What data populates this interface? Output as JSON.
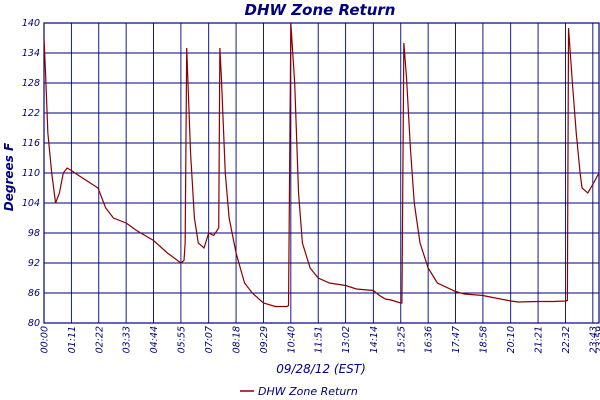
{
  "chart_data": {
    "type": "line",
    "title": "DHW Zone Return",
    "xlabel": "09/28/12 (EST)",
    "ylabel": "Degrees F",
    "ylim": [
      80,
      140
    ],
    "yticks": [
      "80",
      "86",
      "92",
      "98",
      "104",
      "110",
      "116",
      "122",
      "128",
      "134",
      "140"
    ],
    "xticks": [
      "00:00",
      "01:11",
      "02:22",
      "03:33",
      "04:44",
      "05:55",
      "07:07",
      "08:18",
      "09:29",
      "10:40",
      "11:51",
      "13:02",
      "14:14",
      "15:25",
      "16:36",
      "17:47",
      "18:58",
      "20:10",
      "21:21",
      "22:32",
      "23:43",
      "23:59"
    ],
    "grid": true,
    "legend": "bottom-center",
    "series": [
      {
        "name": "DHW Zone Return",
        "color": "#8b0000",
        "x": [
          "00:00",
          "00:04",
          "00:10",
          "00:20",
          "00:30",
          "00:40",
          "00:50",
          "01:00",
          "01:11",
          "01:30",
          "02:00",
          "02:20",
          "02:40",
          "03:00",
          "03:33",
          "04:00",
          "04:44",
          "05:20",
          "05:55",
          "06:03",
          "06:06",
          "06:10",
          "06:20",
          "06:30",
          "06:40",
          "06:55",
          "07:07",
          "07:20",
          "07:33",
          "07:36",
          "07:40",
          "07:50",
          "08:00",
          "08:18",
          "08:40",
          "09:00",
          "09:29",
          "10:00",
          "10:20",
          "10:30",
          "10:34",
          "10:40",
          "10:50",
          "11:00",
          "11:10",
          "11:30",
          "11:51",
          "12:20",
          "13:02",
          "13:30",
          "14:14",
          "14:30",
          "14:45",
          "15:00",
          "15:25",
          "15:28",
          "15:33",
          "15:40",
          "15:50",
          "16:00",
          "16:15",
          "16:36",
          "17:00",
          "17:47",
          "18:10",
          "18:58",
          "19:30",
          "20:10",
          "20:30",
          "21:21",
          "22:00",
          "22:32",
          "22:37",
          "22:40",
          "22:50",
          "23:00",
          "23:10",
          "23:15",
          "23:30",
          "23:45",
          "23:59"
        ],
        "y": [
          137,
          130,
          118,
          110,
          104,
          106,
          110,
          111,
          110.5,
          109.5,
          108,
          107,
          103,
          101,
          100,
          98.5,
          96.5,
          94,
          92,
          92.5,
          96,
          135,
          114,
          101,
          96,
          95,
          98,
          97.5,
          99,
          135,
          129,
          110,
          101,
          94,
          88,
          86,
          84,
          83.3,
          83.3,
          83.3,
          83.5,
          140,
          128,
          106,
          96,
          91,
          89,
          88,
          87.5,
          86.8,
          86.5,
          85.5,
          84.8,
          84.6,
          84,
          84,
          136,
          129,
          115,
          104,
          96,
          91,
          88,
          86.3,
          85.8,
          85.5,
          85,
          84.4,
          84.2,
          84.3,
          84.3,
          84.4,
          84.5,
          139,
          128,
          118,
          110,
          107,
          106,
          108,
          110
        ]
      }
    ]
  }
}
